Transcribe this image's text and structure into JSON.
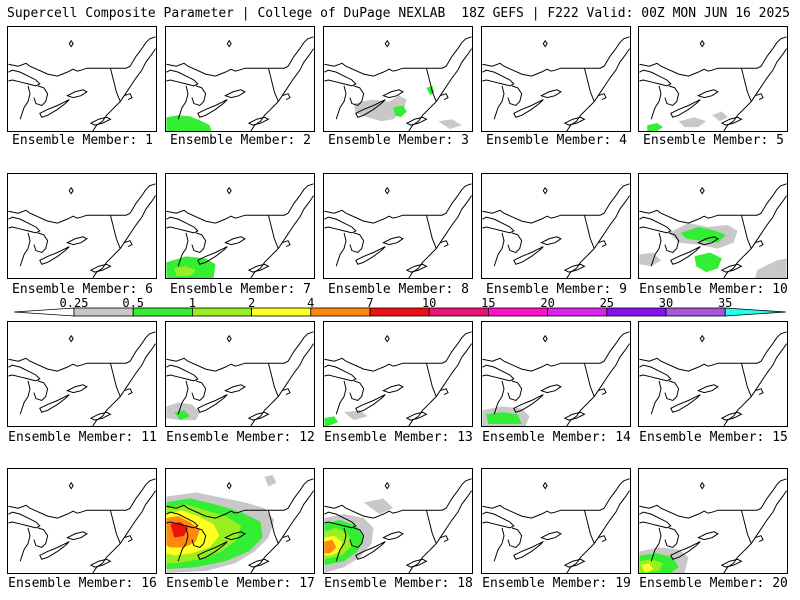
{
  "header": {
    "left_title": "Supercell Composite Parameter | College of DuPage NEXLAB",
    "right_title": "18Z GEFS | F222 Valid: 00Z MON JUN 16 2025"
  },
  "members": [
    {
      "label": "Ensemble Member: 1",
      "max_scp": 0
    },
    {
      "label": "Ensemble Member: 2",
      "max_scp": 1
    },
    {
      "label": "Ensemble Member: 3",
      "max_scp": 1
    },
    {
      "label": "Ensemble Member: 4",
      "max_scp": 0
    },
    {
      "label": "Ensemble Member: 5",
      "max_scp": 0.5
    },
    {
      "label": "Ensemble Member: 6",
      "max_scp": 0
    },
    {
      "label": "Ensemble Member: 7",
      "max_scp": 2
    },
    {
      "label": "Ensemble Member: 8",
      "max_scp": 0
    },
    {
      "label": "Ensemble Member: 9",
      "max_scp": 0
    },
    {
      "label": "Ensemble Member: 10",
      "max_scp": 1
    },
    {
      "label": "Ensemble Member: 11",
      "max_scp": 0
    },
    {
      "label": "Ensemble Member: 12",
      "max_scp": 1
    },
    {
      "label": "Ensemble Member: 13",
      "max_scp": 0.5
    },
    {
      "label": "Ensemble Member: 14",
      "max_scp": 1
    },
    {
      "label": "Ensemble Member: 15",
      "max_scp": 0
    },
    {
      "label": "Ensemble Member: 16",
      "max_scp": 0
    },
    {
      "label": "Ensemble Member: 17",
      "max_scp": 7
    },
    {
      "label": "Ensemble Member: 18",
      "max_scp": 7
    },
    {
      "label": "Ensemble Member: 19",
      "max_scp": 0
    },
    {
      "label": "Ensemble Member: 20",
      "max_scp": 4
    }
  ],
  "colorbar": {
    "labels": [
      "0.25",
      "0.5",
      "1",
      "2",
      "4",
      "7",
      "10",
      "15",
      "20",
      "25",
      "30",
      "35"
    ],
    "colors": [
      "#ffffff",
      "#c8c8c8",
      "#33ee33",
      "#99ee22",
      "#ffff22",
      "#ff8811",
      "#ee1111",
      "#ee1177",
      "#ff11cc",
      "#dd22ee",
      "#8811ee",
      "#aa55dd",
      "#22ffee"
    ]
  }
}
